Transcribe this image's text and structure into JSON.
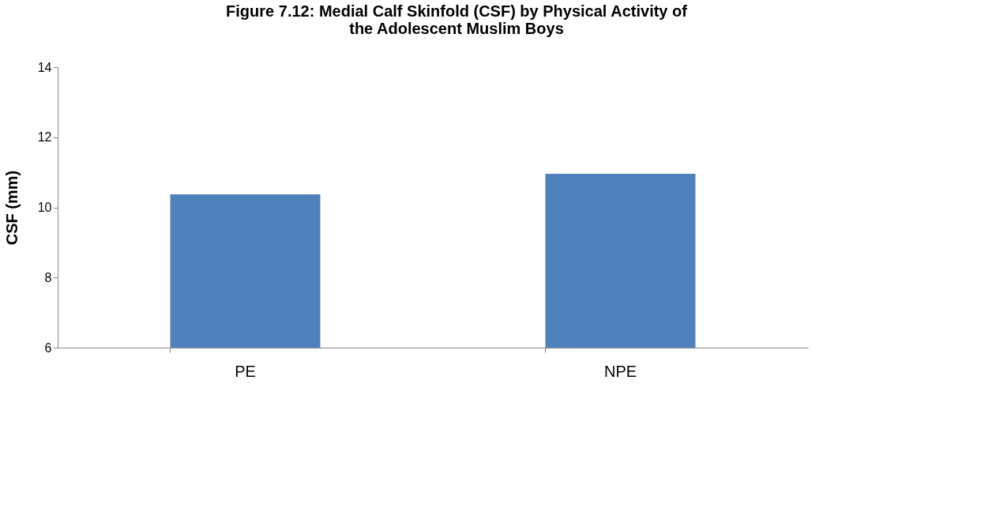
{
  "chart_data": {
    "type": "bar",
    "title": "Figure 7.12: Medial Calf Skinfold (CSF) by Physical Activity of the Adolescent Muslim Boys",
    "ylabel": "CSF (mm)",
    "categories": [
      "PE",
      "NPE"
    ],
    "values": [
      10.37,
      10.96
    ],
    "color": "#4f81bd",
    "ylim": [
      6,
      14
    ],
    "yticks": [
      6,
      8,
      10,
      12,
      14
    ],
    "grid": false
  }
}
